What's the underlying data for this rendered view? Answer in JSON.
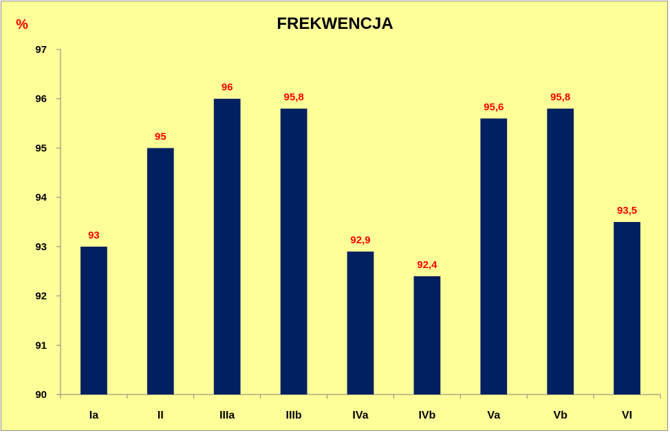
{
  "chart_data": {
    "type": "bar",
    "title": "FREKWENCJA",
    "unit_label": "%",
    "categories": [
      "Ia",
      "II",
      "IIIa",
      "IIIb",
      "IVa",
      "IVb",
      "Va",
      "Vb",
      "VI"
    ],
    "values": [
      93,
      95,
      96,
      95.8,
      92.9,
      92.4,
      95.6,
      95.8,
      93.5
    ],
    "data_labels": [
      "93",
      "95",
      "96",
      "95,8",
      "92,9",
      "92,4",
      "95,6",
      "95,8",
      "93,5"
    ],
    "ylim": [
      90,
      97
    ],
    "yticks": [
      "90",
      "91",
      "92",
      "93",
      "94",
      "95",
      "96",
      "97"
    ],
    "grid": false,
    "legend": "none",
    "colors": {
      "bar": "#002060",
      "data_label": "#ff0000",
      "unit_label": "#ff0000",
      "background": "#ffff99",
      "text": "#000000"
    }
  }
}
